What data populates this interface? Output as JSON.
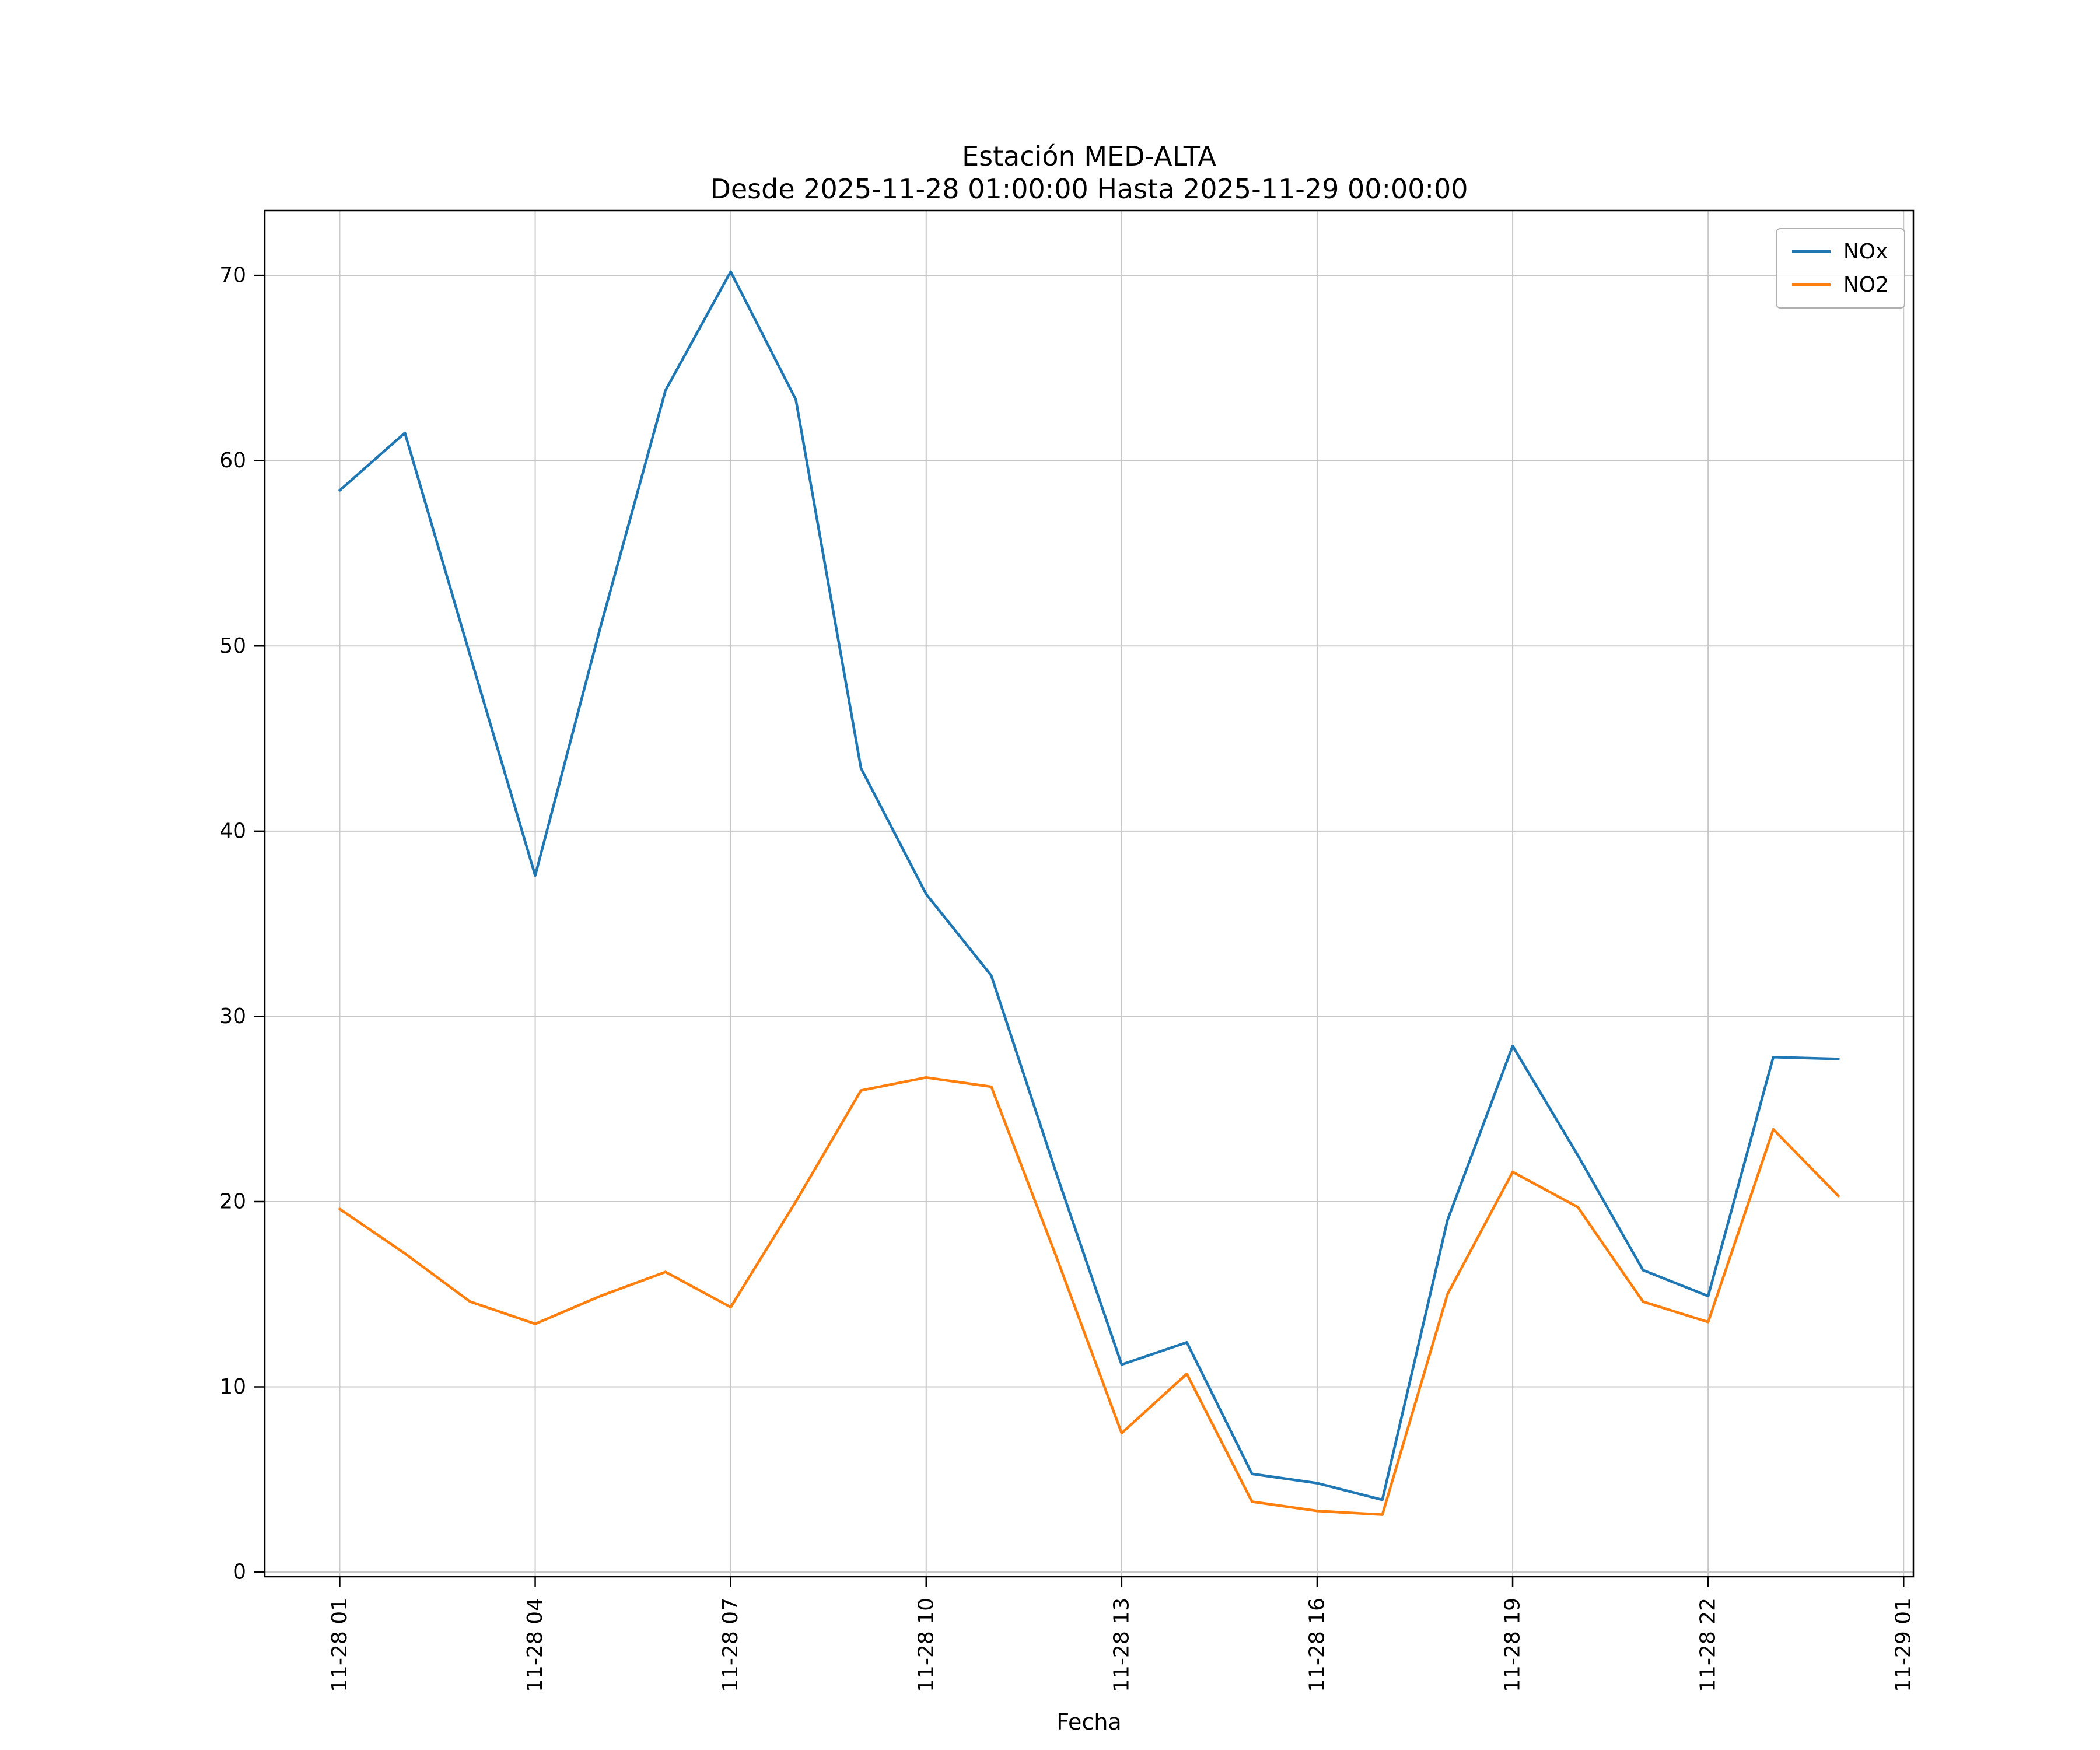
{
  "figure": {
    "title": "Estación MED-ALTA",
    "subtitle": "Desde 2025-11-28 01:00:00 Hasta 2025-11-29 00:00:00",
    "xlabel": "Fecha"
  },
  "chart_data": {
    "type": "line",
    "title": "Estación MED-ALTA",
    "subtitle": "Desde 2025-11-28 01:00:00 Hasta 2025-11-29 00:00:00",
    "xlabel": "Fecha",
    "ylabel": "",
    "grid": true,
    "legend_position": "upper right",
    "x_hours": [
      1,
      2,
      3,
      4,
      5,
      6,
      7,
      8,
      9,
      10,
      11,
      12,
      13,
      14,
      15,
      16,
      17,
      18,
      19,
      20,
      21,
      22,
      23,
      24
    ],
    "series": [
      {
        "name": "NOx",
        "color": "#1f77b4",
        "values": [
          58.4,
          61.5,
          49.5,
          37.6,
          51.0,
          63.8,
          70.2,
          63.3,
          43.4,
          36.6,
          32.2,
          21.5,
          11.2,
          12.4,
          5.3,
          4.8,
          3.9,
          19.0,
          28.4,
          22.5,
          16.3,
          14.9,
          27.8,
          27.7
        ]
      },
      {
        "name": "NO2",
        "color": "#ff7f0e",
        "values": [
          19.6,
          17.2,
          14.6,
          13.4,
          14.9,
          16.2,
          14.3,
          20.0,
          26.0,
          26.7,
          26.2,
          17.0,
          7.5,
          10.7,
          3.8,
          3.3,
          3.1,
          15.0,
          21.6,
          19.7,
          14.6,
          13.5,
          23.9,
          20.3
        ]
      }
    ],
    "x_ticks": [
      {
        "hour": 1,
        "label": "11-28 01"
      },
      {
        "hour": 4,
        "label": "11-28 04"
      },
      {
        "hour": 7,
        "label": "11-28 07"
      },
      {
        "hour": 10,
        "label": "11-28 10"
      },
      {
        "hour": 13,
        "label": "11-28 13"
      },
      {
        "hour": 16,
        "label": "11-28 16"
      },
      {
        "hour": 19,
        "label": "11-28 19"
      },
      {
        "hour": 22,
        "label": "11-28 22"
      },
      {
        "hour": 25,
        "label": "11-29 01"
      }
    ],
    "y_ticks": [
      0,
      10,
      20,
      30,
      40,
      50,
      60,
      70
    ],
    "xlim": [
      -0.15,
      25.15
    ],
    "ylim": [
      -0.25,
      73.5
    ]
  }
}
